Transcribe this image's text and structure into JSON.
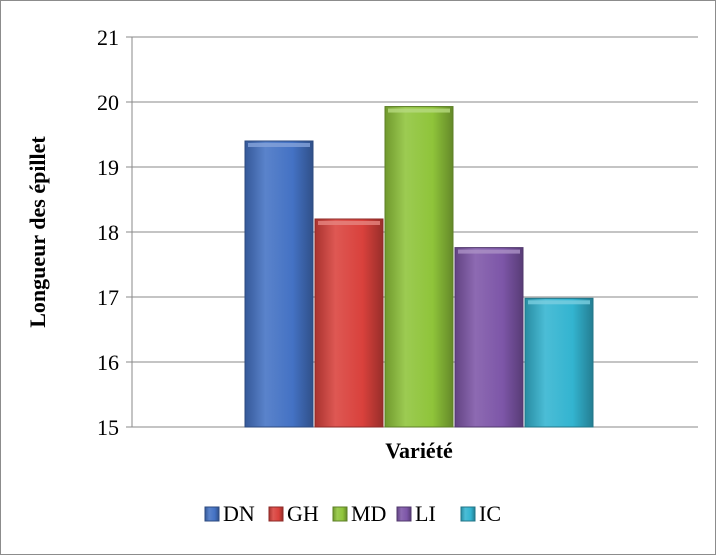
{
  "chart_data": {
    "type": "bar",
    "xlabel": "Variété",
    "ylabel": "Longueur des épillet",
    "ylim": [
      15,
      21
    ],
    "yticks": [
      15,
      16,
      17,
      18,
      19,
      20,
      21
    ],
    "grid": true,
    "legend_position": "bottom",
    "series": [
      {
        "name": "DN",
        "value": 19.4,
        "color": "#4472c4"
      },
      {
        "name": "GH",
        "value": 18.2,
        "color": "#d9413c"
      },
      {
        "name": "MD",
        "value": 19.93,
        "color": "#8fc43a"
      },
      {
        "name": "LI",
        "value": 17.76,
        "color": "#7d56a8"
      },
      {
        "name": "IC",
        "value": 16.98,
        "color": "#33b4d0"
      }
    ]
  }
}
